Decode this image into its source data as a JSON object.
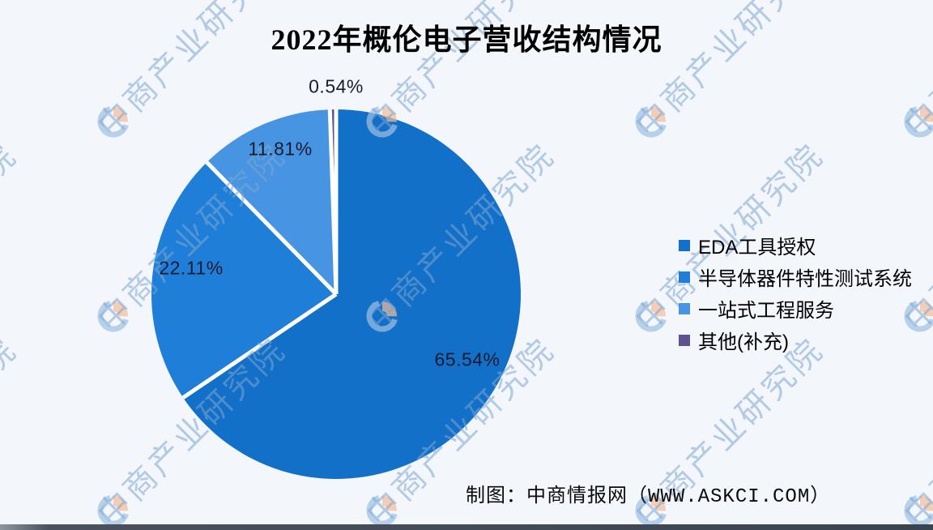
{
  "chart_data": {
    "type": "pie",
    "title": "2022年概伦电子营收结构情况",
    "direction": "clockwise",
    "start_angle_deg": 0,
    "legend_position": "right",
    "background": "#f3f6fa",
    "divider_color": "#ffffff",
    "series": [
      {
        "label": "EDA工具授权",
        "value": 65.54,
        "color": "#1270c8"
      },
      {
        "label": "半导体器件特性测试系统",
        "value": 22.11,
        "color": "#1f7ed8"
      },
      {
        "label": "一站式工程服务",
        "value": 11.81,
        "color": "#4694e2"
      },
      {
        "label": "其他(补充)",
        "value": 0.54,
        "color": "#5e5294"
      }
    ],
    "data_labels": [
      "65.54%",
      "22.11%",
      "11.81%",
      "0.54%"
    ]
  },
  "footer": {
    "attribution": "制图：中商情报网（WWW.ASKCI.COM）"
  },
  "watermark": {
    "text": "中商产业研究院",
    "text_color": "rgba(125,165,210,0.55)",
    "logo_blue": "#9fc2e4",
    "logo_orange": "#f4bd98"
  }
}
